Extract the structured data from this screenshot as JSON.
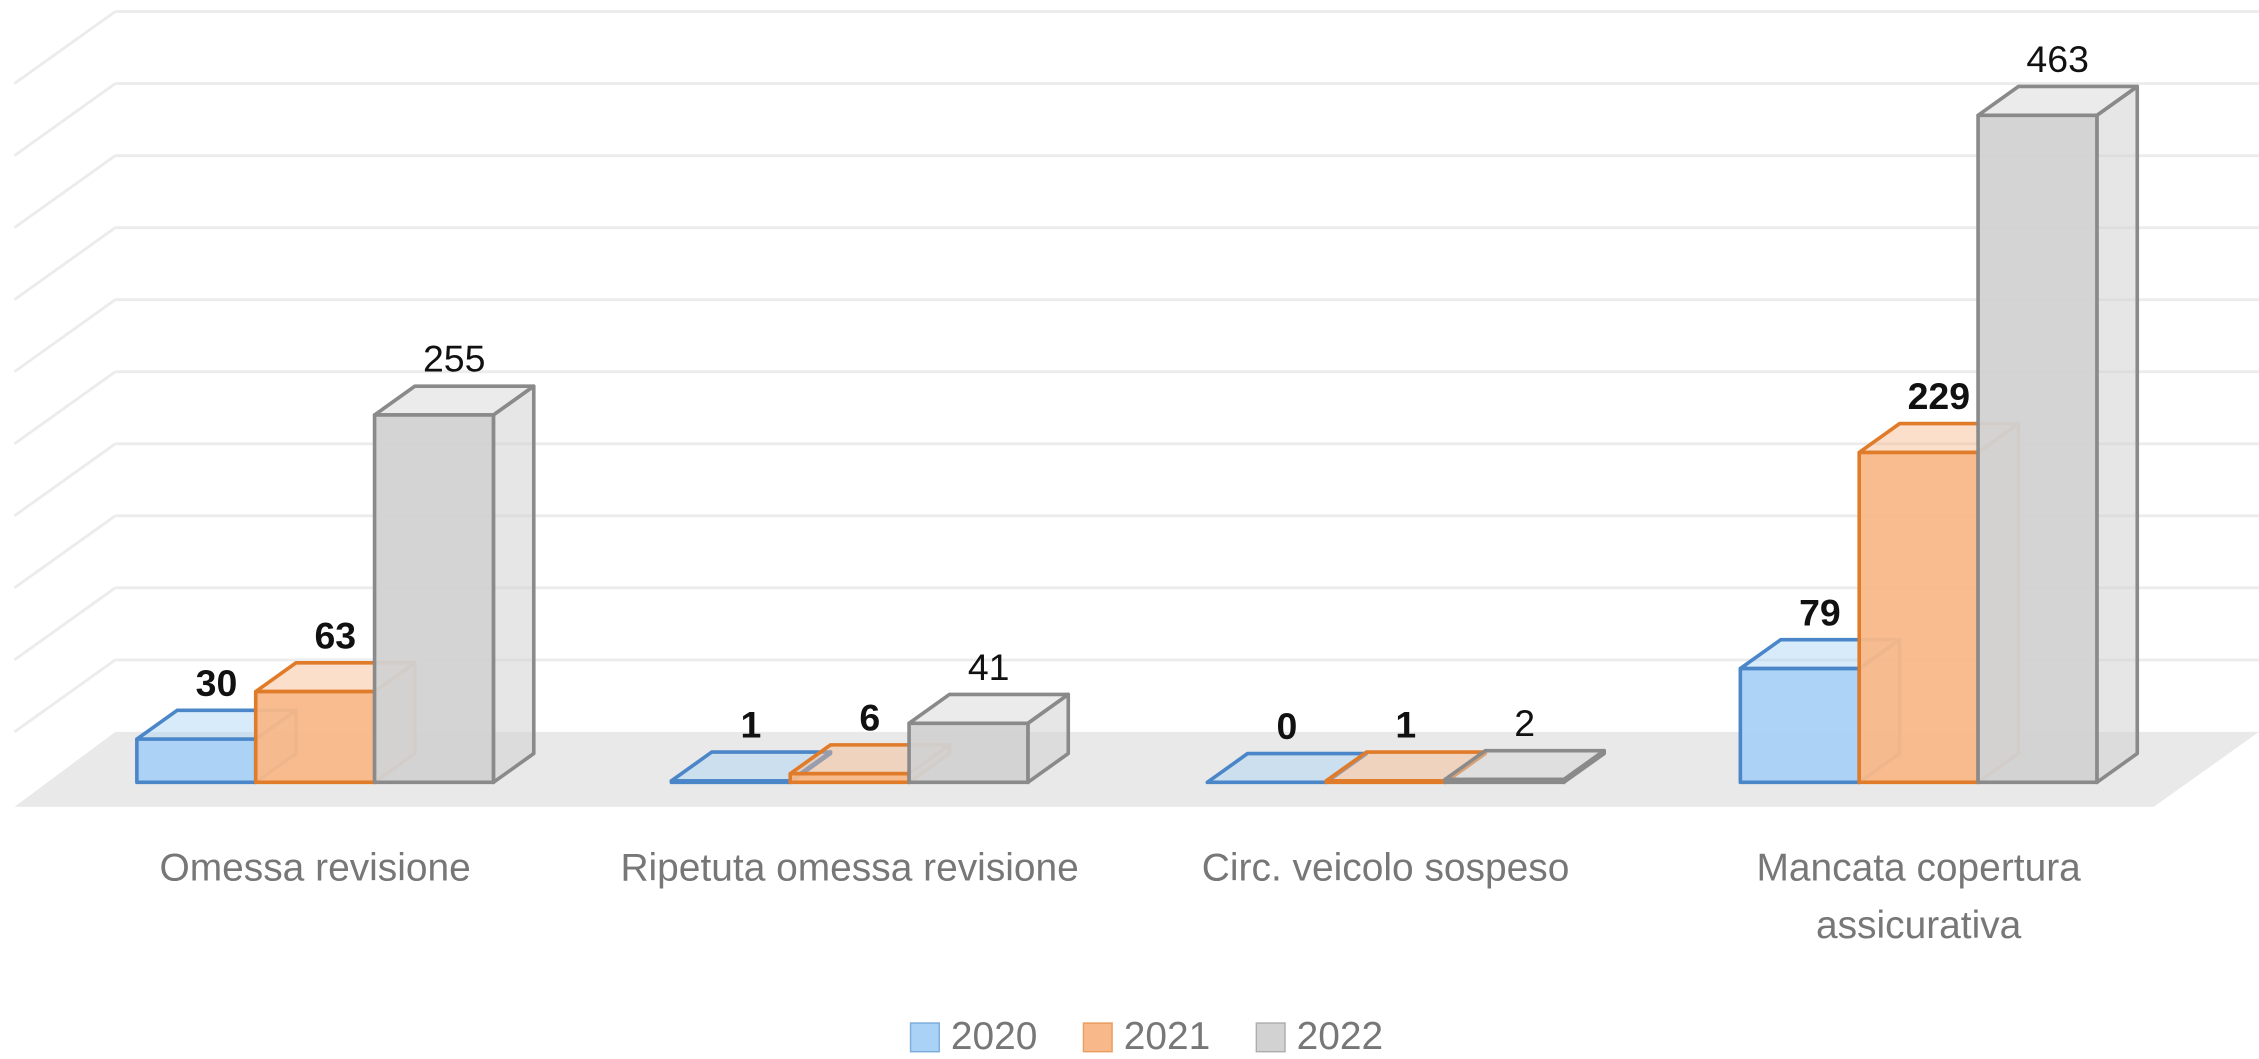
{
  "chart_data": {
    "type": "bar",
    "categories": [
      "Omessa revisione",
      "Ripetuta omessa revisione",
      "Circ. veicolo sospeso",
      "Mancata copertura assicurativa"
    ],
    "series": [
      {
        "name": "2020",
        "color": "#a9d2f6",
        "edgecolor": "#4a86c8",
        "values": [
          30,
          1,
          0,
          79
        ]
      },
      {
        "name": "2021",
        "color": "#f8b889",
        "edgecolor": "#e07b2a",
        "values": [
          63,
          6,
          1,
          229
        ]
      },
      {
        "name": "2022",
        "color": "#d2d2d2",
        "edgecolor": "#8a8a8a",
        "values": [
          255,
          41,
          2,
          463
        ]
      }
    ],
    "ylim": [
      0,
      500
    ],
    "yticks": [
      0,
      50,
      100,
      150,
      200,
      250,
      300,
      350,
      400,
      450,
      500
    ],
    "grid": true,
    "legend": "bottom"
  }
}
